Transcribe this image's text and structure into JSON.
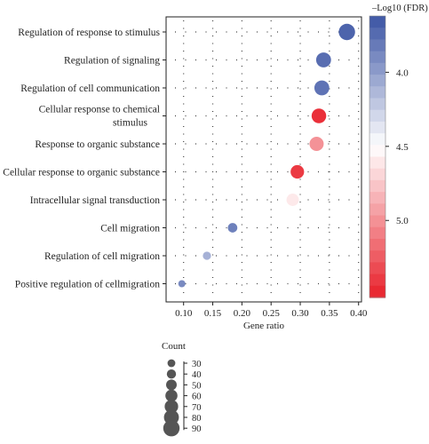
{
  "chart_data": {
    "type": "scatter",
    "subtype": "bubble",
    "xlabel": "Gene ratio",
    "xlim": [
      0.07,
      0.405
    ],
    "xticks": [
      "0.10",
      "0.15",
      "0.20",
      "0.25",
      "0.30",
      "0.35",
      "0.40"
    ],
    "xtick_values": [
      0.1,
      0.15,
      0.2,
      0.25,
      0.3,
      0.35,
      0.4
    ],
    "grid": "dotted",
    "categories": [
      [
        "Regulation of response to stimulus"
      ],
      [
        "Regulation of signaling"
      ],
      [
        "Regulation of cell communication"
      ],
      [
        "Cellular response to chemical",
        "stimulus"
      ],
      [
        "Response to organic substance"
      ],
      [
        "Cellular response to organic substance"
      ],
      [
        "Intracellular signal transduction"
      ],
      [
        "Cell migration"
      ],
      [
        "Regulation of cell migration"
      ],
      [
        "Positive regulation of cellmigration"
      ]
    ],
    "points": [
      {
        "gene_ratio": 0.38,
        "count": 90,
        "neg_log10_fdr": 3.7
      },
      {
        "gene_ratio": 0.34,
        "count": 80,
        "neg_log10_fdr": 3.75
      },
      {
        "gene_ratio": 0.337,
        "count": 80,
        "neg_log10_fdr": 3.78
      },
      {
        "gene_ratio": 0.332,
        "count": 78,
        "neg_log10_fdr": 5.45
      },
      {
        "gene_ratio": 0.328,
        "count": 75,
        "neg_log10_fdr": 5.0
      },
      {
        "gene_ratio": 0.295,
        "count": 70,
        "neg_log10_fdr": 5.4
      },
      {
        "gene_ratio": 0.287,
        "count": 62,
        "neg_log10_fdr": 4.6
      },
      {
        "gene_ratio": 0.184,
        "count": 42,
        "neg_log10_fdr": 3.85
      },
      {
        "gene_ratio": 0.14,
        "count": 33,
        "neg_log10_fdr": 4.1
      },
      {
        "gene_ratio": 0.097,
        "count": 25,
        "neg_log10_fdr": 3.9
      }
    ],
    "colorbar": {
      "title": "–Log10 (FDR)",
      "ticks": [
        "4.0",
        "4.5",
        "5.0"
      ],
      "tick_values": [
        4.0,
        4.5,
        5.0
      ],
      "range": [
        3.62,
        5.52
      ],
      "low_color": "#3b54a4",
      "mid_color": "#ffffff",
      "high_color": "#e8202a",
      "position": "right"
    },
    "size_legend": {
      "title": "Count",
      "values": [
        30,
        40,
        50,
        60,
        70,
        80,
        90
      ],
      "labels": [
        "30",
        "40",
        "50",
        "60",
        "70",
        "80",
        "90"
      ],
      "position": "bottom-left"
    }
  }
}
